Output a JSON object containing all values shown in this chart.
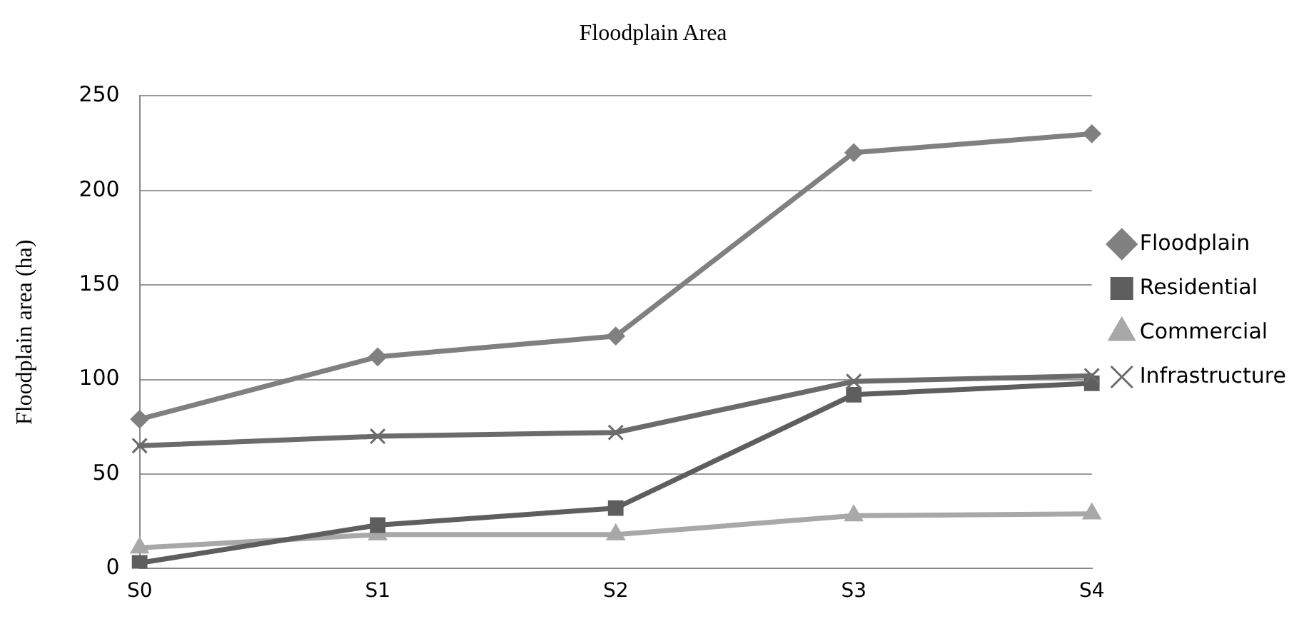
{
  "chart_data": {
    "type": "line",
    "title": "Floodplain Area",
    "ylabel": "Floodplain area (ha)",
    "categories": [
      "S0",
      "S1",
      "S2",
      "S3",
      "S4"
    ],
    "series": [
      {
        "name": "Floodplain",
        "color": "#808080",
        "marker": "diamond",
        "values": [
          79,
          112,
          123,
          220,
          230
        ]
      },
      {
        "name": "Residential",
        "color": "#5e5e5e",
        "marker": "square",
        "values": [
          3,
          23,
          32,
          92,
          98
        ]
      },
      {
        "name": "Commercial",
        "color": "#a8a8a8",
        "marker": "triangle",
        "values": [
          11,
          18,
          18,
          28,
          29
        ]
      },
      {
        "name": "Infrastructure",
        "color": "#6b6b6b",
        "marker": "cross",
        "values": [
          65,
          70,
          72,
          99,
          102
        ]
      }
    ],
    "ylim": [
      0,
      250
    ],
    "yticks": [
      0,
      50,
      100,
      150,
      200,
      250
    ],
    "grid": "y",
    "legend": "right"
  }
}
